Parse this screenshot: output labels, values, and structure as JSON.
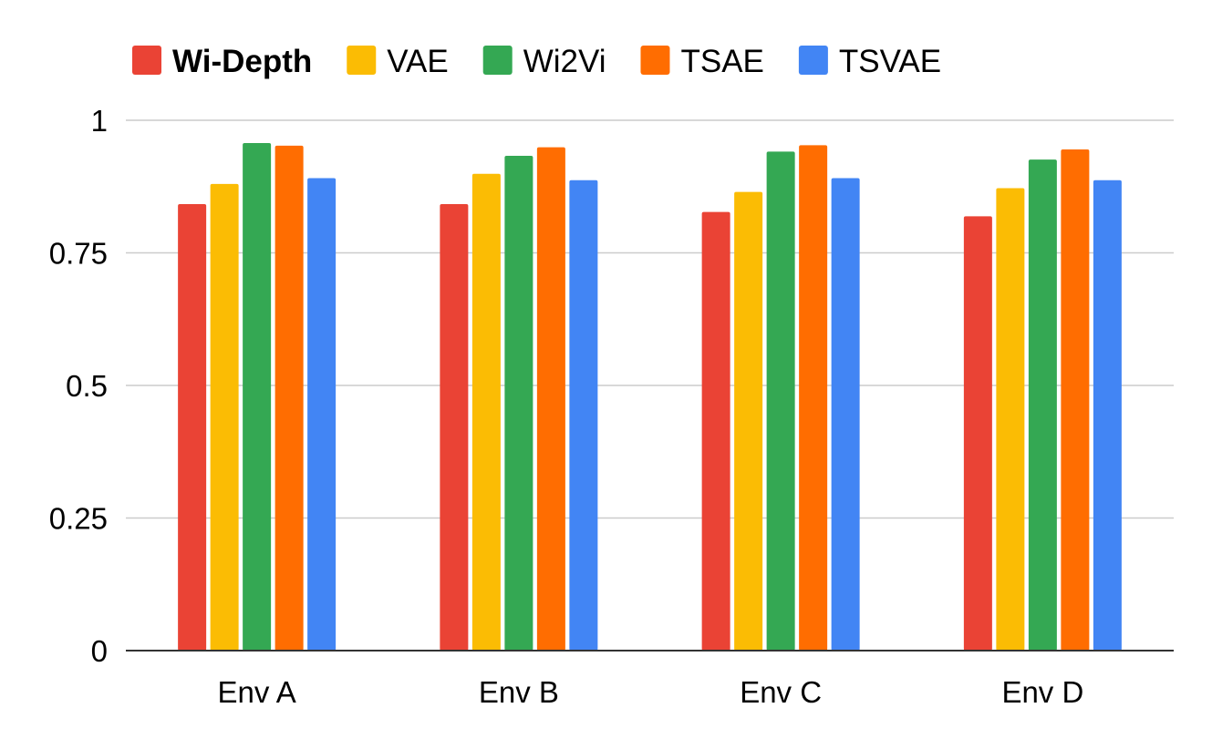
{
  "chart_data": {
    "type": "bar",
    "title": "",
    "xlabel": "",
    "ylabel": "",
    "categories": [
      "Env A",
      "Env B",
      "Env C",
      "Env D"
    ],
    "yticks": [
      "0",
      "0.25",
      "0.5",
      "0.75",
      "1"
    ],
    "ylim": [
      0,
      1
    ],
    "grid": true,
    "legend_position": "top-left",
    "series": [
      {
        "name": "Wi-Depth",
        "color": "#EA4335",
        "values": [
          0.842,
          0.842,
          0.827,
          0.819
        ],
        "bold": true
      },
      {
        "name": "VAE",
        "color": "#FBBC04",
        "values": [
          0.88,
          0.899,
          0.865,
          0.872
        ]
      },
      {
        "name": "Wi2Vi",
        "color": "#34A853",
        "values": [
          0.957,
          0.933,
          0.941,
          0.926
        ]
      },
      {
        "name": "TSAE",
        "color": "#FF6D01",
        "values": [
          0.952,
          0.949,
          0.953,
          0.945
        ]
      },
      {
        "name": "TSVAE",
        "color": "#4285F4",
        "values": [
          0.891,
          0.887,
          0.891,
          0.887
        ]
      }
    ]
  }
}
